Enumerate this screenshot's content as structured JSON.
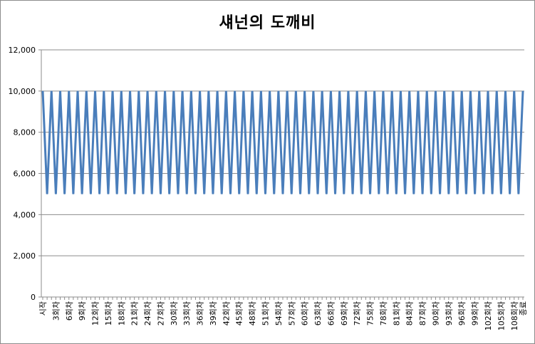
{
  "chart_data": {
    "type": "line",
    "title": "섀넌의 도깨비",
    "xlabel": "",
    "ylabel": "",
    "ylim": [
      0,
      12000
    ],
    "y_ticks": [
      0,
      2000,
      4000,
      6000,
      8000,
      10000,
      12000
    ],
    "y_tick_labels": [
      "0",
      "2,000",
      "4,000",
      "6,000",
      "8,000",
      "10,000",
      "12,000"
    ],
    "grid": "horizontal",
    "legend": "none",
    "colors": {
      "series": "#4a7ebb",
      "grid": "#8c8c8c",
      "axis": "#8c8c8c"
    },
    "x_start_label": "시작",
    "x_end_label": "종료",
    "x_round_suffix": "회차",
    "x_round_count": 109,
    "x_label_step": 3,
    "series": [
      {
        "start_value": 10000,
        "pattern": [
          5000,
          10000
        ],
        "end_value": 10000
      }
    ]
  }
}
